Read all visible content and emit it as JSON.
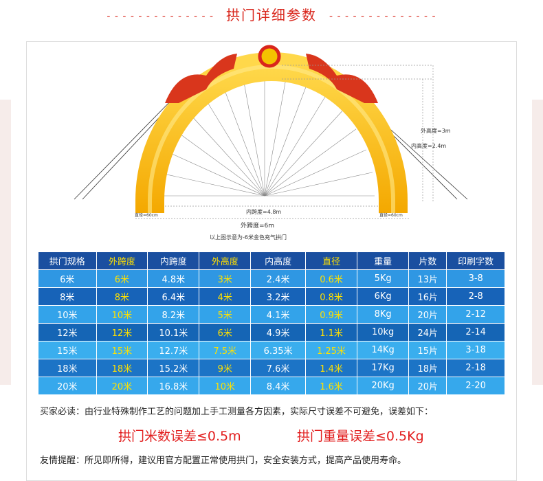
{
  "title": "拱门详细参数",
  "dashes": "- - - - - - - - - - - - - -",
  "diagram": {
    "outer_height": "外高度=3m",
    "inner_height": "内高度=2.4m",
    "inner_span": "内跨度=4.8m",
    "outer_span": "外跨度=6m",
    "caption": "以上图示意为-6米金色充气拱门",
    "diameter_left": "直径=60cm",
    "diameter_right": "直径=60cm"
  },
  "table": {
    "header": [
      "拱门规格",
      "外跨度",
      "内跨度",
      "外高度",
      "内高度",
      "直径",
      "重量",
      "片数",
      "印刷字数"
    ],
    "rows": [
      [
        "6米",
        "6米",
        "4.8米",
        "3米",
        "2.4米",
        "0.6米",
        "5Kg",
        "13片",
        "3-8"
      ],
      [
        "8米",
        "8米",
        "6.4米",
        "4米",
        "3.2米",
        "0.8米",
        "6Kg",
        "16片",
        "2-8"
      ],
      [
        "10米",
        "10米",
        "8.2米",
        "5米",
        "4.1米",
        "0.9米",
        "8Kg",
        "20片",
        "2-12"
      ],
      [
        "12米",
        "12米",
        "10.1米",
        "6米",
        "4.9米",
        "1.1米",
        "10kg",
        "24片",
        "2-14"
      ],
      [
        "15米",
        "15米",
        "12.7米",
        "7.5米",
        "6.35米",
        "1.25米",
        "14Kg",
        "15片",
        "3-18"
      ],
      [
        "18米",
        "18米",
        "15.2米",
        "9米",
        "7.6米",
        "1.4米",
        "17Kg",
        "18片",
        "2-18"
      ],
      [
        "20米",
        "20米",
        "16.8米",
        "10米",
        "8.4米",
        "1.6米",
        "20Kg",
        "20片",
        "2-20"
      ]
    ]
  },
  "notice": "买家必读：由行业特殊制作工艺的问题加上手工测量各方因素，实际尺寸误差不可避免，误差如下：",
  "error_length": "拱门米数误差≤0.5m",
  "error_weight": "拱门重量误差≤0.5Kg",
  "reminder": "友情提醒：所见即所得，建议用官方配置正常使用拱门，安全安装方式，提高产品使用寿命。"
}
